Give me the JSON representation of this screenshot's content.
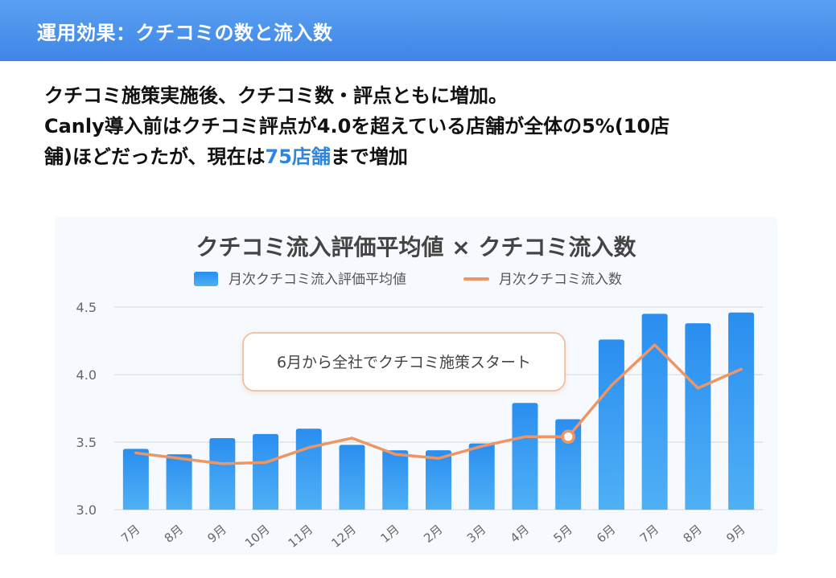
{
  "header": {
    "title": "運用効果：クチコミの数と流入数"
  },
  "summary": {
    "line1": "クチコミ施策実施後、クチコミ数・評点ともに増加。",
    "line2": "Canly導入前はクチコミ評点が4.0を超えている店舗が全体の5%(10店",
    "line3_prefix": "舗)ほどだったが、現在は",
    "line3_highlight": "75店舗",
    "line3_suffix": "まで増加"
  },
  "colors": {
    "header": "#4a90e8",
    "bar": "#2f95ec",
    "line": "#ee9565",
    "highlight": "#2f86e0"
  },
  "chart_data": {
    "type": "bar",
    "title": "クチコミ流入評価平均値 × クチコミ流入数",
    "legend": [
      {
        "name": "月次クチコミ流入評価平均値",
        "kind": "bar"
      },
      {
        "name": "月次クチコミ流入数",
        "kind": "line"
      }
    ],
    "categories": [
      "7月",
      "8月",
      "9月",
      "10月",
      "11月",
      "12月",
      "1月",
      "2月",
      "3月",
      "4月",
      "5月",
      "6月",
      "7月",
      "8月",
      "9月"
    ],
    "series": [
      {
        "name": "月次クチコミ流入評価平均値",
        "type": "bar",
        "values": [
          3.45,
          3.41,
          3.53,
          3.56,
          3.6,
          3.48,
          3.44,
          3.44,
          3.49,
          3.79,
          3.67,
          4.26,
          4.45,
          4.38,
          4.46
        ]
      },
      {
        "name": "月次クチコミ流入数",
        "type": "line",
        "values": [
          3.42,
          3.38,
          3.34,
          3.35,
          3.46,
          3.53,
          3.41,
          3.38,
          3.47,
          3.54,
          3.54,
          3.92,
          4.22,
          3.9,
          4.04
        ]
      }
    ],
    "highlight_point": {
      "category": "5月",
      "series": "月次クチコミ流入数"
    },
    "yticks": [
      "3.0",
      "3.5",
      "4.0",
      "4.5"
    ],
    "ylim": [
      3.0,
      4.5
    ],
    "grid": true,
    "legend_position": "top",
    "annotation": {
      "text": "6月から全社でクチコミ施策スタート"
    }
  }
}
